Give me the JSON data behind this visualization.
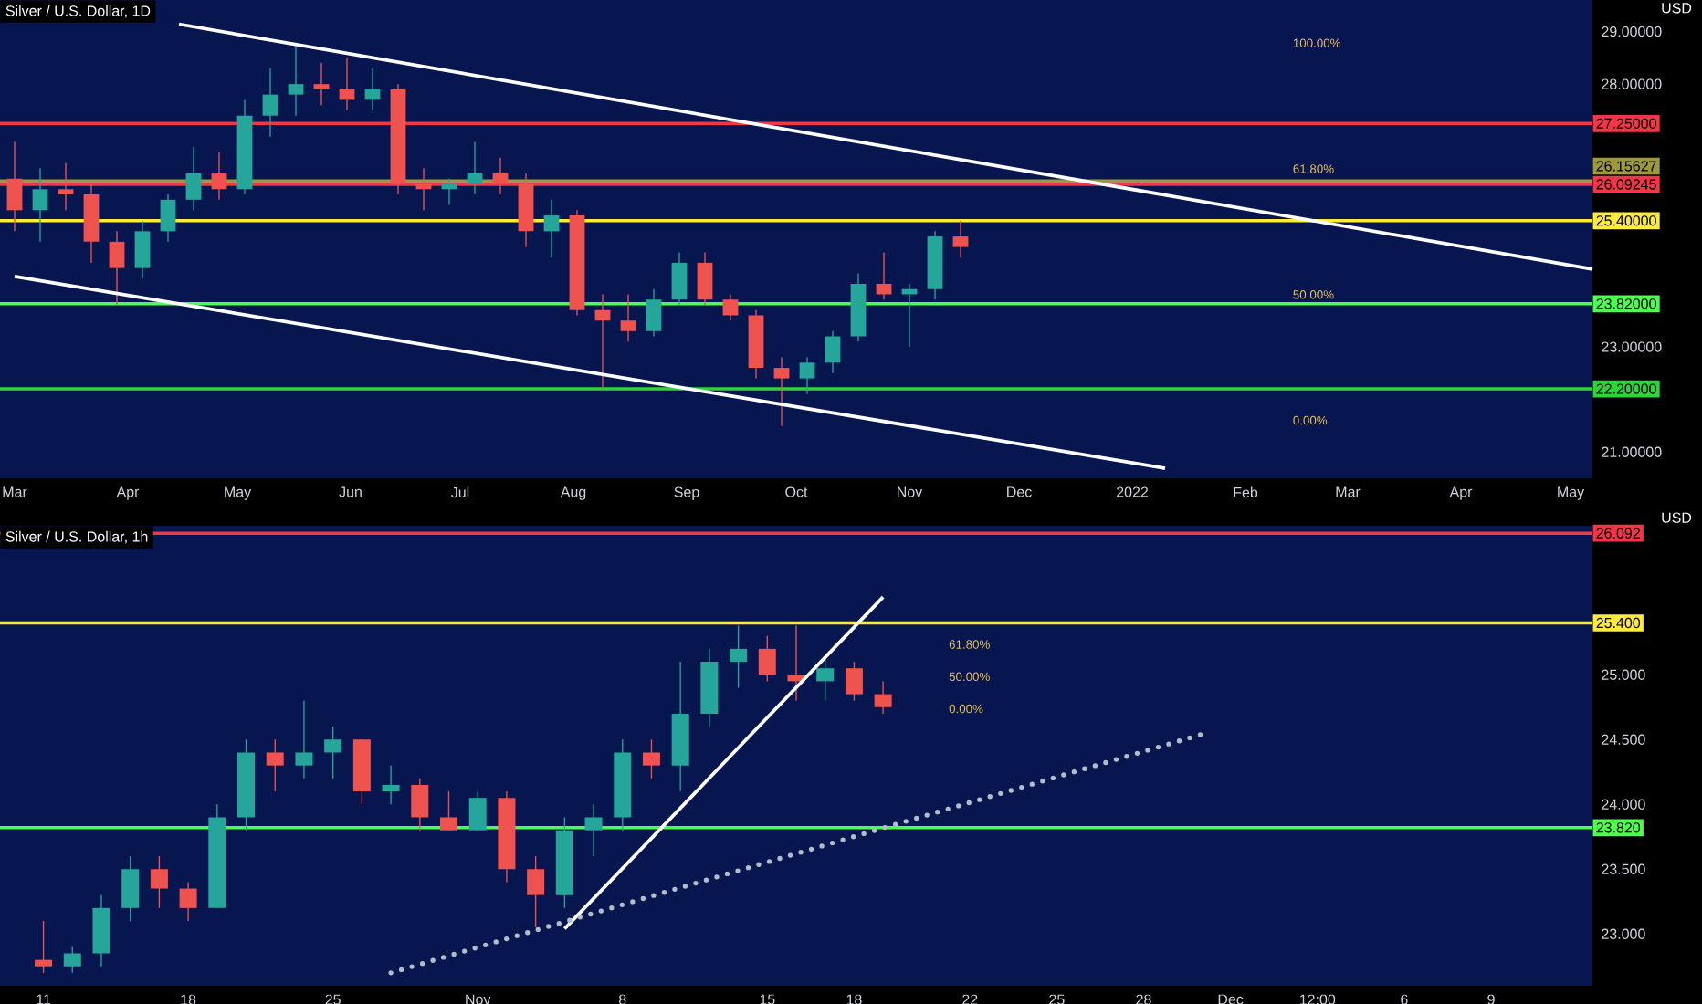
{
  "chart_data": [
    {
      "type": "candlestick",
      "title": "Silver / U.S. Dollar, 1D",
      "ylabel": "USD",
      "xlim": [
        "2021-02-25",
        "2022-05-07"
      ],
      "xticks": [
        {
          "value": "2021-03-01",
          "label": "Mar"
        },
        {
          "value": "2021-04-01",
          "label": "Apr"
        },
        {
          "value": "2021-05-01",
          "label": "May"
        },
        {
          "value": "2021-06-01",
          "label": "Jun"
        },
        {
          "value": "2021-07-01",
          "label": "Jul"
        },
        {
          "value": "2021-08-01",
          "label": "Aug"
        },
        {
          "value": "2021-09-01",
          "label": "Sep"
        },
        {
          "value": "2021-10-01",
          "label": "Oct"
        },
        {
          "value": "2021-11-01",
          "label": "Nov"
        },
        {
          "value": "2021-12-01",
          "label": "Dec"
        },
        {
          "value": "2022-01-01",
          "label": "2022"
        },
        {
          "value": "2022-02-01",
          "label": "Feb"
        },
        {
          "value": "2022-03-01",
          "label": "Mar"
        },
        {
          "value": "2022-04-01",
          "label": "Apr"
        },
        {
          "value": "2022-05-01",
          "label": "May"
        }
      ],
      "ylim": [
        20.5,
        29.6
      ],
      "yticks": [
        {
          "value": 21,
          "label": "21.00000"
        },
        {
          "value": 23,
          "label": "23.00000"
        },
        {
          "value": 28,
          "label": "28.00000"
        },
        {
          "value": 29,
          "label": "29.00000"
        }
      ],
      "series": [
        {
          "type": "candlestick",
          "x": [
            "2021-03-01",
            "2021-03-08",
            "2021-03-15",
            "2021-03-22",
            "2021-03-29",
            "2021-04-05",
            "2021-04-12",
            "2021-04-19",
            "2021-04-26",
            "2021-05-03",
            "2021-05-10",
            "2021-05-17",
            "2021-05-24",
            "2021-05-31",
            "2021-06-07",
            "2021-06-14",
            "2021-06-21",
            "2021-06-28",
            "2021-07-05",
            "2021-07-12",
            "2021-07-19",
            "2021-07-26",
            "2021-08-02",
            "2021-08-09",
            "2021-08-16",
            "2021-08-23",
            "2021-08-30",
            "2021-09-06",
            "2021-09-13",
            "2021-09-20",
            "2021-09-27",
            "2021-10-04",
            "2021-10-11",
            "2021-10-18",
            "2021-10-25",
            "2021-11-01",
            "2021-11-08",
            "2021-11-15"
          ],
          "ohlc": [
            [
              26.2,
              26.9,
              25.2,
              25.6
            ],
            [
              25.6,
              26.4,
              25.0,
              26.0
            ],
            [
              26.0,
              26.5,
              25.6,
              25.9
            ],
            [
              25.9,
              26.1,
              24.6,
              25.0
            ],
            [
              25.0,
              25.2,
              23.8,
              24.5
            ],
            [
              24.5,
              25.4,
              24.3,
              25.2
            ],
            [
              25.2,
              25.9,
              25.0,
              25.8
            ],
            [
              25.8,
              26.8,
              25.6,
              26.3
            ],
            [
              26.3,
              26.7,
              25.8,
              26.0
            ],
            [
              26.0,
              27.7,
              25.9,
              27.4
            ],
            [
              27.4,
              28.3,
              27.0,
              27.8
            ],
            [
              27.8,
              28.7,
              27.4,
              28.0
            ],
            [
              28.0,
              28.4,
              27.6,
              27.9
            ],
            [
              27.9,
              28.5,
              27.5,
              27.7
            ],
            [
              27.7,
              28.3,
              27.5,
              27.9
            ],
            [
              27.9,
              28.0,
              25.9,
              26.1
            ],
            [
              26.1,
              26.4,
              25.6,
              26.0
            ],
            [
              26.0,
              26.2,
              25.7,
              26.1
            ],
            [
              26.1,
              26.9,
              25.9,
              26.3
            ],
            [
              26.3,
              26.6,
              25.9,
              26.1
            ],
            [
              26.1,
              26.3,
              24.9,
              25.2
            ],
            [
              25.2,
              25.8,
              24.7,
              25.5
            ],
            [
              25.5,
              25.6,
              23.6,
              23.7
            ],
            [
              23.7,
              24.0,
              22.2,
              23.5
            ],
            [
              23.5,
              24.0,
              23.1,
              23.3
            ],
            [
              23.3,
              24.1,
              23.2,
              23.9
            ],
            [
              23.9,
              24.8,
              23.8,
              24.6
            ],
            [
              24.6,
              24.8,
              23.8,
              23.9
            ],
            [
              23.9,
              24.0,
              23.5,
              23.6
            ],
            [
              23.6,
              23.7,
              22.4,
              22.6
            ],
            [
              22.6,
              22.8,
              21.5,
              22.4
            ],
            [
              22.4,
              22.8,
              22.1,
              22.7
            ],
            [
              22.7,
              23.3,
              22.5,
              23.2
            ],
            [
              23.2,
              24.4,
              23.1,
              24.2
            ],
            [
              24.2,
              24.8,
              23.9,
              24.0
            ],
            [
              24.0,
              24.2,
              23.0,
              24.1
            ],
            [
              24.1,
              25.2,
              23.9,
              25.1
            ],
            [
              25.1,
              25.4,
              24.7,
              24.9
            ]
          ]
        },
        {
          "type": "line",
          "x": [
            "2021-04-15",
            "2022-05-07"
          ],
          "values": [
            29.14,
            24.48
          ],
          "color": "#ffffff",
          "line_style": "solid"
        },
        {
          "type": "line",
          "x": [
            "2021-03-01",
            "2022-01-10"
          ],
          "values": [
            24.34,
            20.69
          ],
          "color": "#ffffff",
          "line_style": "solid"
        }
      ],
      "ref_lines": [
        {
          "axis": "y",
          "value": 27.25,
          "label": "27.25000",
          "color": "#f23645"
        },
        {
          "axis": "y",
          "value": 26.15627,
          "label": "26.15627",
          "color": "#9e9a3a"
        },
        {
          "axis": "y",
          "value": 26.09245,
          "label": "26.09245",
          "color": "#f23645"
        },
        {
          "axis": "y",
          "value": 25.4,
          "label": "25.40000",
          "color": "#ffeb3b"
        },
        {
          "axis": "y",
          "value": 23.82,
          "label": "23.82000",
          "color": "#4cff4c"
        },
        {
          "axis": "y",
          "value": 22.2,
          "label": "22.20000",
          "color": "#2fd33a"
        }
      ],
      "annotations": [
        "100.00%",
        "61.80%",
        "50.00%",
        "0.00%"
      ]
    },
    {
      "type": "candlestick",
      "title": "Silver / U.S. Dollar, 1h",
      "ylabel": "USD",
      "categories": [
        null,
        "11",
        null,
        null,
        null,
        null,
        "18",
        null,
        null,
        null,
        null,
        "25",
        null,
        null,
        null,
        null,
        "Nov",
        null,
        null,
        null,
        null,
        "8",
        null,
        null,
        null,
        null,
        "15",
        null,
        null,
        "18",
        null,
        null,
        null,
        "22",
        null,
        null,
        "25",
        null,
        null,
        "28",
        null,
        null,
        "Dec",
        null,
        null,
        "12:00",
        null,
        null,
        "6",
        null,
        null,
        "9",
        null,
        null,
        null
      ],
      "ylim": [
        22.6,
        26.15
      ],
      "yticks": [
        {
          "value": 23,
          "label": "23.000"
        },
        {
          "value": 23.5,
          "label": "23.500"
        },
        {
          "value": 24,
          "label": "24.000"
        },
        {
          "value": 24.5,
          "label": "24.500"
        },
        {
          "value": 25,
          "label": "25.000"
        }
      ],
      "series": [
        {
          "type": "candlestick",
          "ohlc": [
            null,
            [
              22.8,
              23.1,
              22.7,
              22.75
            ],
            [
              22.75,
              22.9,
              22.7,
              22.85
            ],
            [
              22.85,
              23.3,
              22.75,
              23.2
            ],
            [
              23.2,
              23.6,
              23.1,
              23.5
            ],
            [
              23.5,
              23.6,
              23.2,
              23.35
            ],
            [
              23.35,
              23.4,
              23.1,
              23.2
            ],
            [
              23.2,
              24.0,
              23.2,
              23.9
            ],
            [
              23.9,
              24.5,
              23.8,
              24.4
            ],
            [
              24.4,
              24.5,
              24.1,
              24.3
            ],
            [
              24.3,
              24.8,
              24.2,
              24.4
            ],
            [
              24.4,
              24.6,
              24.2,
              24.5
            ],
            [
              24.5,
              24.5,
              24.0,
              24.1
            ],
            [
              24.1,
              24.3,
              24.0,
              24.15
            ],
            [
              24.15,
              24.2,
              23.8,
              23.9
            ],
            [
              23.9,
              24.1,
              23.8,
              23.8
            ],
            [
              23.8,
              24.1,
              23.8,
              24.05
            ],
            [
              24.05,
              24.1,
              23.4,
              23.5
            ],
            [
              23.5,
              23.6,
              23.05,
              23.3
            ],
            [
              23.3,
              23.9,
              23.2,
              23.8
            ],
            [
              23.8,
              24.0,
              23.6,
              23.9
            ],
            [
              23.9,
              24.5,
              23.8,
              24.4
            ],
            [
              24.4,
              24.5,
              24.2,
              24.3
            ],
            [
              24.3,
              25.1,
              24.1,
              24.7
            ],
            [
              24.7,
              25.2,
              24.6,
              25.1
            ],
            [
              25.1,
              25.38,
              24.9,
              25.2
            ],
            [
              25.2,
              25.3,
              24.95,
              25.0
            ],
            [
              25.0,
              25.38,
              24.8,
              24.95
            ],
            [
              24.95,
              25.15,
              24.8,
              25.05
            ],
            [
              25.05,
              25.1,
              24.8,
              24.85
            ],
            [
              24.85,
              24.95,
              24.7,
              24.75
            ],
            null,
            null,
            null,
            null,
            null,
            null,
            null,
            null,
            null,
            null,
            null,
            null,
            null,
            null,
            null,
            null,
            null,
            null,
            null,
            null,
            null,
            null,
            null,
            null
          ]
        },
        {
          "type": "line",
          "values": [
            null,
            null,
            null,
            null,
            null,
            null,
            null,
            null,
            null,
            null,
            null,
            null,
            null,
            null,
            null,
            null,
            null,
            null,
            null,
            23.04,
            null,
            null,
            null,
            null,
            null,
            null,
            null,
            null,
            null,
            null,
            25.6,
            null,
            null,
            null,
            null,
            null,
            null,
            null,
            null,
            null,
            null,
            null,
            null,
            null,
            null,
            null,
            null,
            null,
            null,
            null,
            null,
            null,
            null,
            null,
            null
          ],
          "color": "#ffffff",
          "line_style": "solid"
        },
        {
          "type": "line",
          "values": [
            null,
            null,
            null,
            null,
            null,
            null,
            null,
            null,
            null,
            null,
            null,
            null,
            null,
            22.7,
            null,
            null,
            null,
            null,
            null,
            null,
            null,
            null,
            null,
            null,
            null,
            null,
            null,
            null,
            null,
            null,
            null,
            null,
            null,
            null,
            null,
            null,
            null,
            null,
            null,
            null,
            null,
            24.54,
            null,
            null,
            null,
            null,
            null,
            null,
            null,
            null,
            null,
            null,
            null,
            null,
            null
          ],
          "color": "#b0bec5",
          "line_style": "dotted"
        }
      ],
      "ref_lines": [
        {
          "axis": "y",
          "value": 26.09245,
          "label": "26.092",
          "color": "#f23645"
        },
        {
          "axis": "y",
          "value": 25.4,
          "label": "25.400",
          "color": "#ffeb3b"
        },
        {
          "axis": "y",
          "value": 23.82,
          "label": "23.820",
          "color": "#4cff4c"
        }
      ],
      "annotations": [
        "61.80%",
        "50.00%",
        "0.00%"
      ]
    }
  ]
}
